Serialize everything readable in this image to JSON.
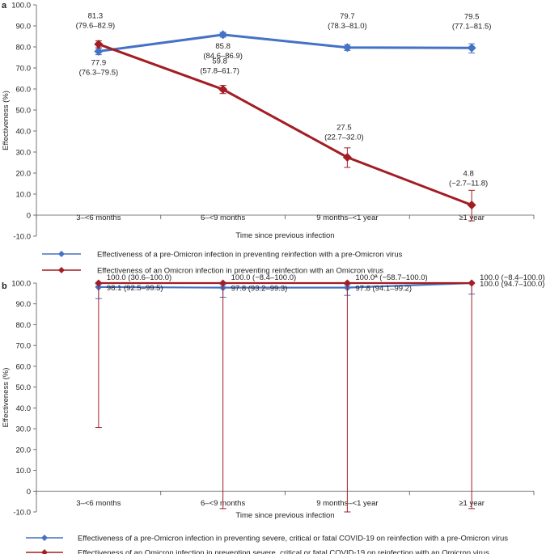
{
  "chart_data": [
    {
      "panel": "a",
      "type": "line",
      "categories": [
        "3–<6 months",
        "6–<9 months",
        "9 months–<1 year",
        "≥1 year"
      ],
      "xlabel": "Time since previous infection",
      "ylabel": "Effectiveness (%)",
      "ylim": [
        -10,
        100
      ],
      "yticks": [
        "-10.0",
        "0",
        "10.0",
        "20.0",
        "30.0",
        "40.0",
        "50.0",
        "60.0",
        "70.0",
        "80.0",
        "90.0",
        "100.0"
      ],
      "series": [
        {
          "name": "Effectiveness of a pre-Omicron infection in preventing reinfection with a pre-Omicron virus",
          "color": "#4472c4",
          "marker": "diamond",
          "values": [
            77.9,
            85.8,
            79.7,
            79.5
          ],
          "lower": [
            76.3,
            84.6,
            78.3,
            77.1
          ],
          "upper": [
            79.5,
            86.9,
            81.0,
            81.5
          ],
          "labels": [
            [
              "77.9",
              "(76.3–79.5)"
            ],
            [
              "85.8",
              "(84.6–86.9)"
            ],
            [
              "79.7",
              "(78.3–81.0)"
            ],
            [
              "79.5",
              "(77.1–81.5)"
            ]
          ]
        },
        {
          "name": "Effectiveness of an Omicron infection in preventing reinfection with an Omicron virus",
          "color": "#a31d24",
          "marker": "diamond",
          "values": [
            81.3,
            59.8,
            27.5,
            4.8
          ],
          "lower": [
            79.6,
            57.8,
            22.7,
            -2.7
          ],
          "upper": [
            82.9,
            61.7,
            32.0,
            11.8
          ],
          "labels": [
            [
              "81.3",
              "(79.6–82.9)"
            ],
            [
              "59.8",
              "(57.8–61.7)"
            ],
            [
              "27.5",
              "(22.7–32.0)"
            ],
            [
              "4.8",
              "(−2.7–11.8)"
            ]
          ]
        }
      ]
    },
    {
      "panel": "b",
      "type": "line",
      "categories": [
        "3–<6 months",
        "6–<9 months",
        "9 months–<1 year",
        "≥1 year"
      ],
      "xlabel": "Time since previous infection",
      "ylabel": "Effectiveness (%)",
      "ylim": [
        -10,
        100
      ],
      "yticks": [
        "-10.0",
        "0",
        "10.0",
        "20.0",
        "30.0",
        "40.0",
        "50.0",
        "60.0",
        "70.0",
        "80.0",
        "90.0",
        "100.0"
      ],
      "series": [
        {
          "name": "Effectiveness of a pre-Omicron infection in preventing severe, critical or fatal COVID-19 on reinfection with a pre-Omicron virus",
          "color": "#4472c4",
          "marker": "diamond",
          "values": [
            98.1,
            97.8,
            97.8,
            100.0
          ],
          "lower": [
            92.5,
            93.2,
            94.1,
            94.7
          ],
          "upper": [
            99.5,
            99.3,
            99.2,
            100.0
          ],
          "labels": [
            "98.1 (92.5–99.5)",
            "97.8 (93.2–99.3)",
            "97.8 (94.1–99.2)",
            "100.0 (94.7–100.0)"
          ]
        },
        {
          "name": "Effectiveness of an Omicron infection in preventing severe, critical or fatal COVID-19 on reinfection with an Omicron virus",
          "color": "#a31d24",
          "marker": "diamond",
          "values": [
            100.0,
            100.0,
            100.0,
            100.0
          ],
          "lower": [
            30.6,
            -8.4,
            -58.7,
            -8.4
          ],
          "upper": [
            100.0,
            100.0,
            100.0,
            100.0
          ],
          "labels": [
            "100.0 (30.6–100.0)",
            "100.0 (−8.4–100.0)",
            "100.0ª (−58.7–100.0)",
            "100.0 (−8.4–100.0)"
          ]
        }
      ]
    }
  ]
}
